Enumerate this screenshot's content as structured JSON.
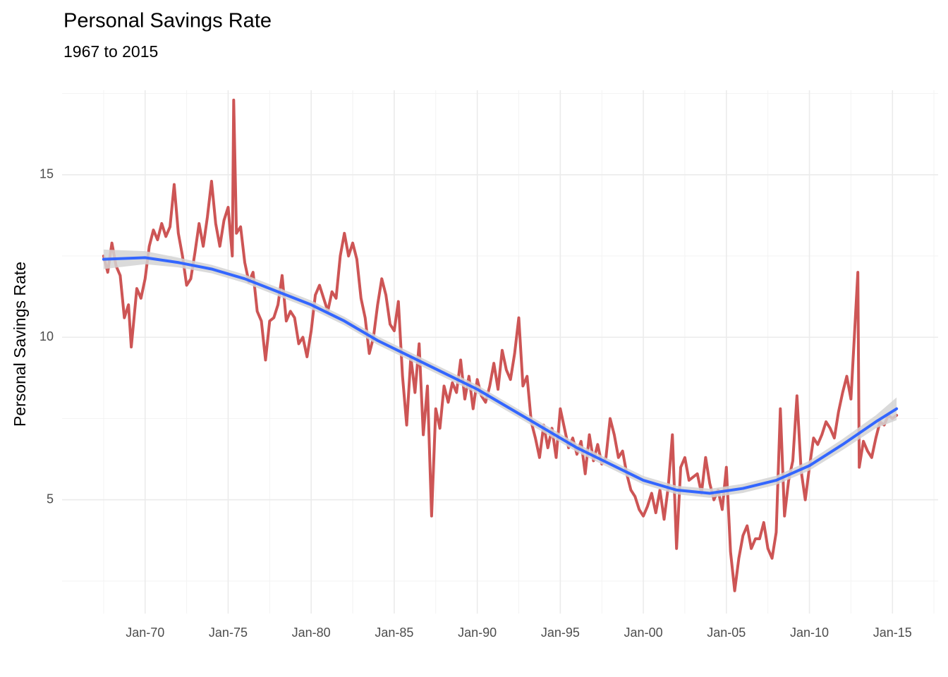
{
  "chart_data": {
    "type": "line",
    "title": "Personal Savings Rate",
    "subtitle": "1967 to 2015",
    "y_label": "Personal Savings Rate",
    "xlim": [
      "1965-01",
      "2017-10"
    ],
    "ylim": [
      1.5,
      17.6
    ],
    "yticks": [
      5,
      10,
      15
    ],
    "yminor": [
      2.5,
      7.5,
      12.5,
      17.5
    ],
    "xticks": [
      {
        "value": "1970-01",
        "label": "Jan-70"
      },
      {
        "value": "1975-01",
        "label": "Jan-75"
      },
      {
        "value": "1980-01",
        "label": "Jan-80"
      },
      {
        "value": "1985-01",
        "label": "Jan-85"
      },
      {
        "value": "1990-01",
        "label": "Jan-90"
      },
      {
        "value": "1995-01",
        "label": "Jan-95"
      },
      {
        "value": "2000-01",
        "label": "Jan-00"
      },
      {
        "value": "2005-01",
        "label": "Jan-05"
      },
      {
        "value": "2010-01",
        "label": "Jan-10"
      },
      {
        "value": "2015-01",
        "label": "Jan-15"
      }
    ],
    "xminor": [
      "1967-07",
      "1972-07",
      "1977-07",
      "1982-07",
      "1987-07",
      "1992-07",
      "1997-07",
      "2002-07",
      "2007-07",
      "2012-07",
      "2017-07"
    ],
    "grid": true,
    "series": [
      {
        "color": "#cd5555",
        "x": [
          "1967-07",
          "1967-10",
          "1968-01",
          "1968-04",
          "1968-07",
          "1968-10",
          "1969-01",
          "1969-03",
          "1969-07",
          "1969-10",
          "1970-01",
          "1970-04",
          "1970-07",
          "1970-10",
          "1971-01",
          "1971-04",
          "1971-07",
          "1971-10",
          "1972-01",
          "1972-04",
          "1972-07",
          "1972-10",
          "1973-01",
          "1973-04",
          "1973-07",
          "1973-10",
          "1974-01",
          "1974-04",
          "1974-07",
          "1974-10",
          "1975-01",
          "1975-04",
          "1975-05",
          "1975-07",
          "1975-10",
          "1976-01",
          "1976-04",
          "1976-07",
          "1976-10",
          "1977-01",
          "1977-04",
          "1977-07",
          "1977-10",
          "1978-01",
          "1978-04",
          "1978-07",
          "1978-10",
          "1979-01",
          "1979-04",
          "1979-07",
          "1979-10",
          "1980-01",
          "1980-04",
          "1980-07",
          "1980-10",
          "1981-01",
          "1981-04",
          "1981-07",
          "1981-10",
          "1982-01",
          "1982-04",
          "1982-07",
          "1982-10",
          "1983-01",
          "1983-04",
          "1983-07",
          "1983-10",
          "1984-01",
          "1984-04",
          "1984-07",
          "1984-10",
          "1985-01",
          "1985-04",
          "1985-07",
          "1985-10",
          "1986-01",
          "1986-04",
          "1986-07",
          "1986-10",
          "1987-01",
          "1987-04",
          "1987-07",
          "1987-10",
          "1988-01",
          "1988-04",
          "1988-07",
          "1988-10",
          "1989-01",
          "1989-04",
          "1989-07",
          "1989-10",
          "1990-01",
          "1990-04",
          "1990-07",
          "1990-10",
          "1991-01",
          "1991-04",
          "1991-07",
          "1991-10",
          "1992-01",
          "1992-04",
          "1992-07",
          "1992-10",
          "1993-01",
          "1993-04",
          "1993-07",
          "1993-10",
          "1994-01",
          "1994-04",
          "1994-07",
          "1994-10",
          "1995-01",
          "1995-04",
          "1995-07",
          "1995-10",
          "1996-01",
          "1996-04",
          "1996-07",
          "1996-10",
          "1997-01",
          "1997-04",
          "1997-07",
          "1997-10",
          "1998-01",
          "1998-04",
          "1998-07",
          "1998-10",
          "1999-01",
          "1999-04",
          "1999-07",
          "1999-10",
          "2000-01",
          "2000-04",
          "2000-07",
          "2000-10",
          "2001-01",
          "2001-04",
          "2001-07",
          "2001-10",
          "2002-01",
          "2002-04",
          "2002-07",
          "2002-10",
          "2003-01",
          "2003-04",
          "2003-07",
          "2003-10",
          "2004-01",
          "2004-04",
          "2004-07",
          "2004-10",
          "2005-01",
          "2005-04",
          "2005-07",
          "2005-10",
          "2006-01",
          "2006-04",
          "2006-07",
          "2006-10",
          "2007-01",
          "2007-04",
          "2007-07",
          "2007-10",
          "2008-01",
          "2008-04",
          "2008-07",
          "2008-10",
          "2009-01",
          "2009-04",
          "2009-07",
          "2009-10",
          "2010-01",
          "2010-04",
          "2010-07",
          "2010-10",
          "2011-01",
          "2011-04",
          "2011-07",
          "2011-10",
          "2012-01",
          "2012-04",
          "2012-07",
          "2012-12",
          "2013-01",
          "2013-04",
          "2013-07",
          "2013-10",
          "2014-01",
          "2014-04",
          "2014-07",
          "2014-10",
          "2015-01",
          "2015-04"
        ],
        "values": [
          12.5,
          12.0,
          12.9,
          12.2,
          11.9,
          10.6,
          11.0,
          9.7,
          11.5,
          11.2,
          11.8,
          12.8,
          13.3,
          13.0,
          13.5,
          13.1,
          13.4,
          14.7,
          13.2,
          12.5,
          11.6,
          11.8,
          12.6,
          13.5,
          12.8,
          13.7,
          14.8,
          13.5,
          12.8,
          13.6,
          14.0,
          12.5,
          17.3,
          13.2,
          13.4,
          12.3,
          11.7,
          12.0,
          10.8,
          10.5,
          9.3,
          10.5,
          10.6,
          11.0,
          11.9,
          10.5,
          10.8,
          10.6,
          9.8,
          10.0,
          9.4,
          10.2,
          11.3,
          11.6,
          11.2,
          10.8,
          11.4,
          11.2,
          12.5,
          13.2,
          12.5,
          12.9,
          12.4,
          11.2,
          10.6,
          9.5,
          10.0,
          11.0,
          11.8,
          11.3,
          10.4,
          10.2,
          11.1,
          8.8,
          7.3,
          9.4,
          8.3,
          9.8,
          7.0,
          8.5,
          4.5,
          7.8,
          7.2,
          8.5,
          8.0,
          8.6,
          8.3,
          9.3,
          8.1,
          8.8,
          7.8,
          8.7,
          8.2,
          8.0,
          8.5,
          9.2,
          8.4,
          9.6,
          9.0,
          8.7,
          9.5,
          10.6,
          8.5,
          8.8,
          7.4,
          6.9,
          6.3,
          7.3,
          6.6,
          7.2,
          6.3,
          7.8,
          7.2,
          6.6,
          6.9,
          6.4,
          6.8,
          5.8,
          7.0,
          6.2,
          6.7,
          6.1,
          6.3,
          7.5,
          7.0,
          6.3,
          6.5,
          5.8,
          5.3,
          5.1,
          4.7,
          4.5,
          4.8,
          5.2,
          4.6,
          5.3,
          4.4,
          5.4,
          7.0,
          3.5,
          6.0,
          6.3,
          5.6,
          5.7,
          5.8,
          5.2,
          6.3,
          5.5,
          5.0,
          5.3,
          4.7,
          6.0,
          3.4,
          2.2,
          3.2,
          3.9,
          4.2,
          3.5,
          3.8,
          3.8,
          4.3,
          3.5,
          3.2,
          4.0,
          7.8,
          4.5,
          5.6,
          6.2,
          8.2,
          5.9,
          5.0,
          6.0,
          6.9,
          6.7,
          7.0,
          7.4,
          7.2,
          6.9,
          7.7,
          8.3,
          8.8,
          8.1,
          12.0,
          6.0,
          6.8,
          6.5,
          6.3,
          6.9,
          7.4,
          7.3,
          7.6,
          7.5,
          7.6
        ]
      },
      {
        "color": "#3366ff",
        "band_color": "#d4d4d4",
        "x": [
          "1967-07",
          "1970-01",
          "1972-01",
          "1974-01",
          "1976-01",
          "1978-01",
          "1980-01",
          "1982-01",
          "1984-01",
          "1986-01",
          "1988-01",
          "1990-01",
          "1992-01",
          "1994-01",
          "1996-01",
          "1998-01",
          "2000-01",
          "2002-01",
          "2004-01",
          "2006-01",
          "2008-01",
          "2010-01",
          "2012-01",
          "2014-01",
          "2015-04"
        ],
        "values": [
          12.4,
          12.45,
          12.3,
          12.1,
          11.8,
          11.4,
          11.0,
          10.5,
          9.9,
          9.4,
          8.9,
          8.4,
          7.8,
          7.2,
          6.6,
          6.1,
          5.6,
          5.3,
          5.2,
          5.35,
          5.6,
          6.05,
          6.7,
          7.4,
          7.8
        ],
        "lower": [
          12.1,
          12.25,
          12.15,
          11.97,
          11.67,
          11.27,
          10.87,
          10.37,
          9.77,
          9.27,
          8.77,
          8.27,
          7.67,
          7.07,
          6.47,
          5.97,
          5.47,
          5.17,
          5.06,
          5.21,
          5.46,
          5.9,
          6.53,
          7.2,
          7.45
        ],
        "upper": [
          12.7,
          12.65,
          12.45,
          12.23,
          11.93,
          11.53,
          11.13,
          10.63,
          10.03,
          9.53,
          9.03,
          8.53,
          7.93,
          7.33,
          6.73,
          6.23,
          5.73,
          5.43,
          5.34,
          5.49,
          5.74,
          6.2,
          6.87,
          7.6,
          8.15
        ]
      }
    ]
  }
}
